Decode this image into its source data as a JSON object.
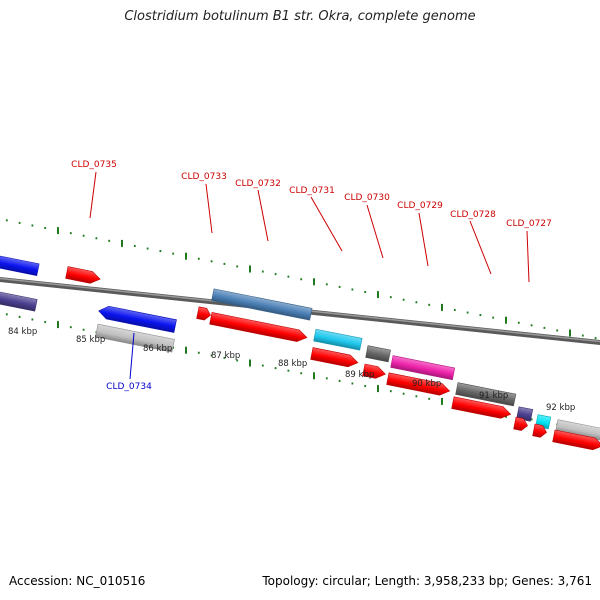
{
  "title": "Clostridium botulinum B1 str. Okra, complete genome",
  "footer": {
    "accession": "Accession: NC_010516",
    "summary": "Topology: circular; Length: 3,958,233 bp; Genes: 3,761"
  },
  "colors": {
    "tick": "#1f7a1f",
    "backbone": "#777777",
    "label_top": "#cc0000",
    "label_bottom": "#0000cc",
    "red": "#ff0000",
    "steelblue": "#4a7fb5",
    "cyan": "#1ec8ee",
    "darkgray": "#666666",
    "magenta": "#ee22aa",
    "slateblue": "#4a3f8f",
    "aqua": "#00e5f5",
    "silver": "#c0c0c0",
    "blue": "#0a14ee"
  },
  "kbp_labels": [
    "84 kbp",
    "85 kbp",
    "86 kbp",
    "87 kbp",
    "88 kbp",
    "89 kbp",
    "90 kbp",
    "91 kbp",
    "92 kbp"
  ],
  "gene_labels_top": [
    "CLD_0735",
    "CLD_0733",
    "CLD_0732",
    "CLD_0731",
    "CLD_0730",
    "CLD_0729",
    "CLD_0728",
    "CLD_0727"
  ],
  "gene_labels_bottom": [
    "CLD_0734"
  ]
}
